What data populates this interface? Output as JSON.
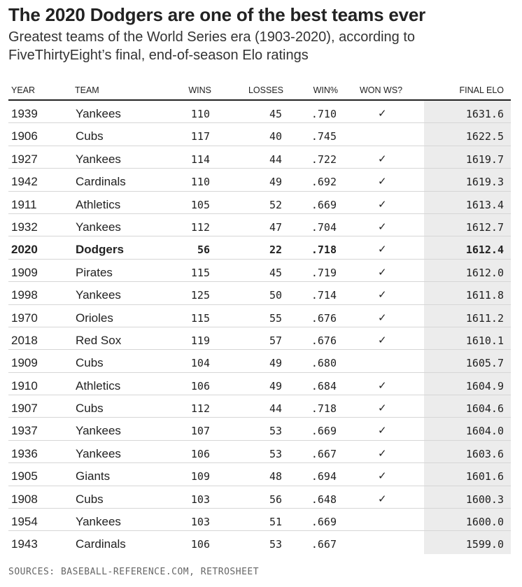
{
  "title": "The 2020 Dodgers are one of the best teams ever",
  "subtitle": "Greatest teams of the World Series era (1903-2020), according to FiveThirtyEight’s final, end-of-season Elo ratings",
  "source": "SOURCES: BASEBALL-REFERENCE.COM, RETROSHEET",
  "colors": {
    "text": "#222222",
    "highlight_column_bg": "#ececec",
    "rule": "#222222",
    "row_divider": "#d6d6d6"
  },
  "chart_data": {
    "type": "table",
    "title": "The 2020 Dodgers are one of the best teams ever",
    "subtitle": "Greatest teams of the World Series era (1903-2020), according to FiveThirtyEight’s final, end-of-season Elo ratings",
    "columns": [
      "YEAR",
      "TEAM",
      "WINS",
      "LOSSES",
      "WIN%",
      "WON WS?",
      "FINAL ELO"
    ],
    "highlighted_row": 6,
    "highlighted_column": "FINAL ELO",
    "rows": [
      [
        "1939",
        "Yankees",
        "110",
        "45",
        ".710",
        "✓",
        "1631.6"
      ],
      [
        "1906",
        "Cubs",
        "117",
        "40",
        ".745",
        "",
        "1622.5"
      ],
      [
        "1927",
        "Yankees",
        "114",
        "44",
        ".722",
        "✓",
        "1619.7"
      ],
      [
        "1942",
        "Cardinals",
        "110",
        "49",
        ".692",
        "✓",
        "1619.3"
      ],
      [
        "1911",
        "Athletics",
        "105",
        "52",
        ".669",
        "✓",
        "1613.4"
      ],
      [
        "1932",
        "Yankees",
        "112",
        "47",
        ".704",
        "✓",
        "1612.7"
      ],
      [
        "2020",
        "Dodgers",
        "56",
        "22",
        ".718",
        "✓",
        "1612.4"
      ],
      [
        "1909",
        "Pirates",
        "115",
        "45",
        ".719",
        "✓",
        "1612.0"
      ],
      [
        "1998",
        "Yankees",
        "125",
        "50",
        ".714",
        "✓",
        "1611.8"
      ],
      [
        "1970",
        "Orioles",
        "115",
        "55",
        ".676",
        "✓",
        "1611.2"
      ],
      [
        "2018",
        "Red Sox",
        "119",
        "57",
        ".676",
        "✓",
        "1610.1"
      ],
      [
        "1909",
        "Cubs",
        "104",
        "49",
        ".680",
        "",
        "1605.7"
      ],
      [
        "1910",
        "Athletics",
        "106",
        "49",
        ".684",
        "✓",
        "1604.9"
      ],
      [
        "1907",
        "Cubs",
        "112",
        "44",
        ".718",
        "✓",
        "1604.6"
      ],
      [
        "1937",
        "Yankees",
        "107",
        "53",
        ".669",
        "✓",
        "1604.0"
      ],
      [
        "1936",
        "Yankees",
        "106",
        "53",
        ".667",
        "✓",
        "1603.6"
      ],
      [
        "1905",
        "Giants",
        "109",
        "48",
        ".694",
        "✓",
        "1601.6"
      ],
      [
        "1908",
        "Cubs",
        "103",
        "56",
        ".648",
        "✓",
        "1600.3"
      ],
      [
        "1954",
        "Yankees",
        "103",
        "51",
        ".669",
        "",
        "1600.0"
      ],
      [
        "1943",
        "Cardinals",
        "106",
        "53",
        ".667",
        "",
        "1599.0"
      ]
    ]
  }
}
